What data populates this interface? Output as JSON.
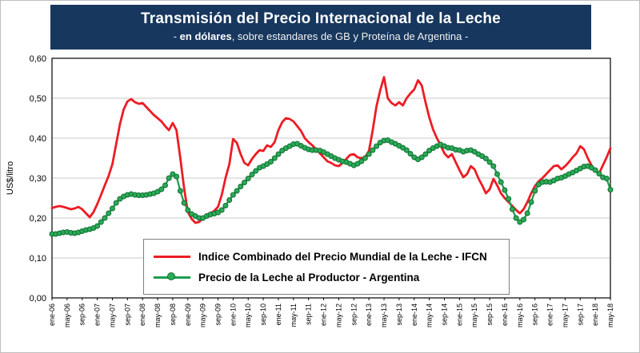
{
  "header": {
    "title": "Transmisión del Precio Internacional de la Leche",
    "subtitle_prefix": "- ",
    "subtitle_bold": "en dólares",
    "subtitle_rest": ", sobre estandares de GB y Proteína de  Argentina -"
  },
  "colors": {
    "banner": "#17375e",
    "ifcn_line": "#ed1c24",
    "argentina_line": "#1e9e4f",
    "argentina_marker_fill": "#2bab56",
    "argentina_marker_edge": "#0f6f33",
    "gridline": "#c9c9c9",
    "plot_border": "#000000"
  },
  "chart_data": {
    "type": "line",
    "title": "Transmisión del Precio Internacional de la Leche",
    "subtitle": "- en dólares, sobre estandares de GB y Proteína de  Argentina -",
    "xlabel": "",
    "ylabel": "US$/litro",
    "ylim": [
      0,
      0.6
    ],
    "y_tick_labels": [
      "0,00",
      "0,10",
      "0,20",
      "0,30",
      "0,40",
      "0,50",
      "0,60"
    ],
    "grid": "horizontal",
    "legend_position": "inside-bottom",
    "n_points": 149,
    "x_tick_interval": 4,
    "x_tick_labels": [
      "ene-06",
      "may-06",
      "sep-06",
      "ene-07",
      "may-07",
      "sep-07",
      "ene-08",
      "may-08",
      "sep-08",
      "ene-09",
      "may-09",
      "sep-09",
      "ene-10",
      "may-10",
      "sep-10",
      "ene-11",
      "may-11",
      "sep-11",
      "ene-12",
      "may-12",
      "sep-12",
      "ene-13",
      "may-13",
      "sep-13",
      "ene-14",
      "may-14",
      "sep-14",
      "ene-15",
      "may-15",
      "sep-15",
      "ene-16",
      "may-16",
      "sep-16",
      "ene-17",
      "may-17",
      "sep-17",
      "ene-18",
      "may-18"
    ],
    "series": [
      {
        "name": "Indice Combinado del Precio Mundial de la Leche - IFCN",
        "color": "#ed1c24",
        "marker": "none",
        "values": [
          0.225,
          0.228,
          0.23,
          0.228,
          0.225,
          0.222,
          0.224,
          0.228,
          0.222,
          0.212,
          0.202,
          0.215,
          0.235,
          0.258,
          0.282,
          0.305,
          0.335,
          0.385,
          0.435,
          0.472,
          0.492,
          0.498,
          0.49,
          0.486,
          0.488,
          0.478,
          0.468,
          0.458,
          0.45,
          0.442,
          0.43,
          0.42,
          0.438,
          0.42,
          0.35,
          0.275,
          0.215,
          0.198,
          0.188,
          0.19,
          0.2,
          0.208,
          0.212,
          0.218,
          0.228,
          0.258,
          0.3,
          0.335,
          0.398,
          0.388,
          0.36,
          0.338,
          0.332,
          0.348,
          0.36,
          0.37,
          0.368,
          0.382,
          0.378,
          0.39,
          0.42,
          0.44,
          0.45,
          0.448,
          0.442,
          0.43,
          0.418,
          0.4,
          0.39,
          0.382,
          0.372,
          0.362,
          0.352,
          0.342,
          0.338,
          0.332,
          0.33,
          0.338,
          0.348,
          0.358,
          0.36,
          0.352,
          0.35,
          0.352,
          0.368,
          0.42,
          0.48,
          0.52,
          0.553,
          0.5,
          0.488,
          0.482,
          0.49,
          0.482,
          0.5,
          0.512,
          0.522,
          0.545,
          0.532,
          0.49,
          0.452,
          0.422,
          0.4,
          0.382,
          0.362,
          0.352,
          0.36,
          0.34,
          0.32,
          0.302,
          0.31,
          0.33,
          0.322,
          0.3,
          0.282,
          0.262,
          0.272,
          0.298,
          0.282,
          0.262,
          0.25,
          0.24,
          0.23,
          0.22,
          0.212,
          0.222,
          0.24,
          0.262,
          0.28,
          0.292,
          0.3,
          0.31,
          0.32,
          0.33,
          0.332,
          0.322,
          0.33,
          0.34,
          0.352,
          0.362,
          0.38,
          0.372,
          0.35,
          0.332,
          0.318,
          0.312,
          0.332,
          0.352,
          0.375
        ]
      },
      {
        "name": "Precio de la Leche al Productor - Argentina",
        "color": "#1e9e4f",
        "marker": "circle",
        "marker_fill": "#2bab56",
        "marker_edge": "#0f6f33",
        "values": [
          0.16,
          0.16,
          0.162,
          0.164,
          0.165,
          0.163,
          0.162,
          0.164,
          0.167,
          0.17,
          0.172,
          0.175,
          0.18,
          0.19,
          0.2,
          0.212,
          0.224,
          0.238,
          0.248,
          0.254,
          0.258,
          0.26,
          0.258,
          0.257,
          0.257,
          0.258,
          0.26,
          0.262,
          0.266,
          0.272,
          0.282,
          0.3,
          0.31,
          0.304,
          0.268,
          0.238,
          0.22,
          0.21,
          0.205,
          0.2,
          0.2,
          0.205,
          0.209,
          0.211,
          0.214,
          0.22,
          0.231,
          0.245,
          0.258,
          0.268,
          0.279,
          0.289,
          0.299,
          0.309,
          0.318,
          0.326,
          0.33,
          0.335,
          0.341,
          0.35,
          0.36,
          0.369,
          0.375,
          0.38,
          0.385,
          0.386,
          0.381,
          0.376,
          0.372,
          0.37,
          0.37,
          0.369,
          0.365,
          0.36,
          0.355,
          0.35,
          0.346,
          0.342,
          0.34,
          0.336,
          0.332,
          0.336,
          0.342,
          0.35,
          0.36,
          0.37,
          0.38,
          0.389,
          0.394,
          0.395,
          0.39,
          0.386,
          0.381,
          0.376,
          0.37,
          0.361,
          0.352,
          0.347,
          0.352,
          0.36,
          0.369,
          0.375,
          0.38,
          0.384,
          0.38,
          0.376,
          0.375,
          0.371,
          0.37,
          0.366,
          0.369,
          0.37,
          0.366,
          0.36,
          0.355,
          0.349,
          0.34,
          0.33,
          0.31,
          0.29,
          0.27,
          0.248,
          0.222,
          0.2,
          0.19,
          0.196,
          0.212,
          0.24,
          0.268,
          0.284,
          0.29,
          0.291,
          0.29,
          0.294,
          0.299,
          0.301,
          0.305,
          0.31,
          0.314,
          0.319,
          0.324,
          0.329,
          0.33,
          0.326,
          0.32,
          0.311,
          0.302,
          0.299,
          0.271
        ]
      }
    ]
  }
}
